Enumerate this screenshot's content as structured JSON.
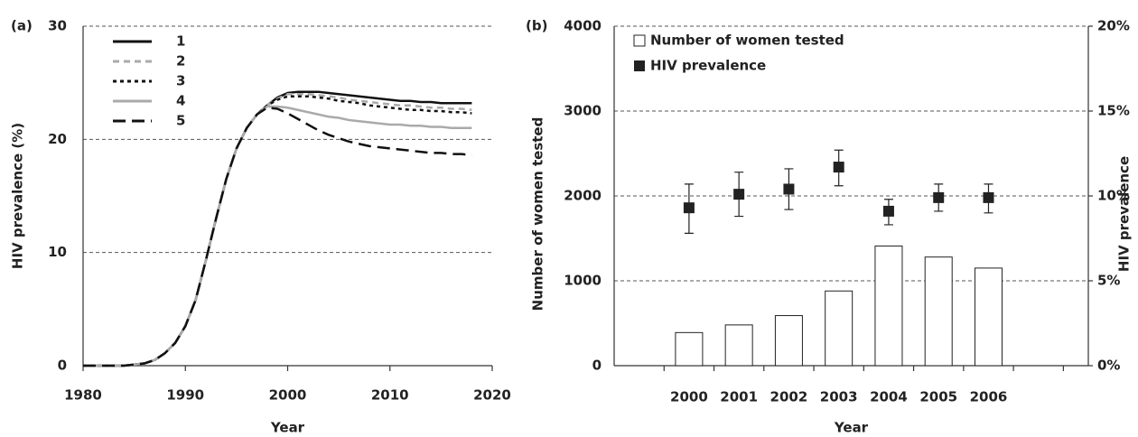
{
  "chart_data": [
    {
      "type": "line",
      "label": "(a)",
      "xlabel": "Year",
      "ylabel": "HIV prevalence (%)",
      "x": [
        1980,
        1981,
        1982,
        1983,
        1984,
        1985,
        1986,
        1987,
        1988,
        1989,
        1990,
        1991,
        1992,
        1993,
        1994,
        1995,
        1996,
        1997,
        1998,
        1999,
        2000,
        2001,
        2002,
        2003,
        2004,
        2005,
        2006,
        2007,
        2008,
        2009,
        2010,
        2011,
        2012,
        2013,
        2014,
        2015,
        2016,
        2017,
        2018
      ],
      "xlim": [
        1980,
        2020
      ],
      "xticks": [
        1980,
        1990,
        2000,
        2010,
        2020
      ],
      "ylim": [
        0,
        30
      ],
      "yticks": [
        0,
        10,
        20,
        30
      ],
      "grid": true,
      "legend": "upper left",
      "series": [
        {
          "name": "1",
          "color": "#111111",
          "dash": "solid",
          "values": [
            0,
            0,
            0,
            0,
            0,
            0.1,
            0.2,
            0.5,
            1.1,
            2.0,
            3.5,
            5.8,
            9.3,
            13.0,
            16.5,
            19.2,
            21.0,
            22.2,
            23.0,
            23.7,
            24.1,
            24.2,
            24.2,
            24.2,
            24.1,
            24.0,
            23.9,
            23.8,
            23.7,
            23.6,
            23.5,
            23.4,
            23.4,
            23.3,
            23.3,
            23.2,
            23.2,
            23.2,
            23.2
          ]
        },
        {
          "name": "2",
          "color": "#aaaaaa",
          "dash": "dashed",
          "values": [
            0,
            0,
            0,
            0,
            0,
            0.1,
            0.2,
            0.5,
            1.1,
            2.0,
            3.5,
            5.8,
            9.3,
            13.0,
            16.5,
            19.2,
            21.0,
            22.2,
            23.0,
            23.6,
            24.0,
            24.0,
            24.0,
            23.9,
            23.8,
            23.7,
            23.5,
            23.4,
            23.3,
            23.2,
            23.1,
            23.0,
            23.0,
            22.9,
            22.8,
            22.8,
            22.7,
            22.7,
            22.6
          ]
        },
        {
          "name": "3",
          "color": "#111111",
          "dash": "dotted",
          "values": [
            0,
            0,
            0,
            0,
            0,
            0.1,
            0.2,
            0.5,
            1.1,
            2.0,
            3.5,
            5.8,
            9.3,
            13.0,
            16.5,
            19.2,
            21.0,
            22.2,
            23.0,
            23.5,
            23.8,
            23.8,
            23.8,
            23.7,
            23.6,
            23.4,
            23.3,
            23.2,
            23.0,
            22.9,
            22.8,
            22.7,
            22.6,
            22.6,
            22.5,
            22.5,
            22.4,
            22.4,
            22.3
          ]
        },
        {
          "name": "4",
          "color": "#aaaaaa",
          "dash": "solid",
          "values": [
            0,
            0,
            0,
            0,
            0,
            0.1,
            0.2,
            0.5,
            1.1,
            2.0,
            3.5,
            5.8,
            9.3,
            13.0,
            16.5,
            19.2,
            21.0,
            22.2,
            22.9,
            22.9,
            22.8,
            22.6,
            22.4,
            22.2,
            22.0,
            21.9,
            21.7,
            21.6,
            21.5,
            21.4,
            21.3,
            21.3,
            21.2,
            21.2,
            21.1,
            21.1,
            21.0,
            21.0,
            21.0
          ]
        },
        {
          "name": "5",
          "color": "#111111",
          "dash": "longdash",
          "values": [
            0,
            0,
            0,
            0,
            0,
            0.1,
            0.2,
            0.5,
            1.1,
            2.0,
            3.5,
            5.8,
            9.3,
            13.0,
            16.5,
            19.2,
            21.0,
            22.2,
            22.8,
            22.7,
            22.3,
            21.8,
            21.3,
            20.8,
            20.4,
            20.1,
            19.8,
            19.6,
            19.4,
            19.3,
            19.2,
            19.1,
            19.0,
            18.9,
            18.8,
            18.8,
            18.7,
            18.7,
            18.6
          ]
        }
      ]
    },
    {
      "type": "bar",
      "label": "(b)",
      "xlabel": "Year",
      "ylabel": "Number of women tested",
      "y2label": "HIV prevalence",
      "categories": [
        "2000",
        "2001",
        "2002",
        "2003",
        "2004",
        "2005",
        "2006"
      ],
      "ylim": [
        0,
        4000
      ],
      "yticks": [
        0,
        1000,
        2000,
        3000,
        4000
      ],
      "y2lim": [
        0,
        20
      ],
      "y2ticks": [
        {
          "value": 0,
          "label": "0%"
        },
        {
          "value": 5,
          "label": "5%"
        },
        {
          "value": 10,
          "label": "10%"
        },
        {
          "value": 15,
          "label": "15%"
        },
        {
          "value": 20,
          "label": "20%"
        }
      ],
      "grid": true,
      "legend": "upper left",
      "series": [
        {
          "name": "Number of women tested",
          "type": "bar",
          "color": "#ffffff",
          "values": [
            390,
            480,
            590,
            880,
            1410,
            1280,
            1150
          ]
        },
        {
          "name": "HIV prevalence",
          "type": "scatter",
          "axis": "y2",
          "color": "#222222",
          "values": [
            9.3,
            10.1,
            10.4,
            11.7,
            9.1,
            9.9,
            9.9
          ],
          "error_low": [
            7.8,
            8.8,
            9.2,
            10.6,
            8.3,
            9.1,
            9.0
          ],
          "error_high": [
            10.7,
            11.4,
            11.6,
            12.7,
            9.8,
            10.7,
            10.7
          ]
        }
      ]
    }
  ]
}
